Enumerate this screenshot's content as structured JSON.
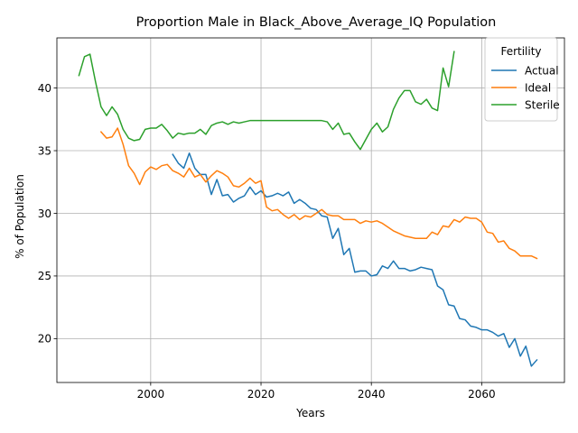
{
  "chart_data": {
    "type": "line",
    "title": "Proportion Male in Black_Above_Average_IQ Population",
    "xlabel": "Years",
    "ylabel": "% of Population",
    "xlim": [
      1983,
      2075
    ],
    "ylim": [
      16.5,
      44
    ],
    "xticks": [
      2000,
      2020,
      2040,
      2060
    ],
    "yticks": [
      20,
      25,
      30,
      35,
      40
    ],
    "grid": true,
    "legend": {
      "title": "Fertility",
      "placement": "top-right"
    },
    "series": [
      {
        "name": "Actual",
        "color": "#1f77b4",
        "x": [
          2004,
          2005,
          2006,
          2007,
          2008,
          2009,
          2010,
          2011,
          2012,
          2013,
          2014,
          2015,
          2016,
          2017,
          2018,
          2019,
          2020,
          2021,
          2022,
          2023,
          2024,
          2025,
          2026,
          2027,
          2028,
          2029,
          2030,
          2031,
          2032,
          2033,
          2034,
          2035,
          2036,
          2037,
          2038,
          2039,
          2040,
          2041,
          2042,
          2043,
          2044,
          2045,
          2046,
          2047,
          2048,
          2049,
          2050,
          2051,
          2052,
          2053,
          2054,
          2055,
          2056,
          2057,
          2058,
          2059,
          2060,
          2061,
          2062,
          2063,
          2064,
          2065,
          2066,
          2067,
          2068,
          2069,
          2070
        ],
        "values": [
          34.7,
          34.0,
          33.6,
          34.8,
          33.6,
          33.1,
          33.1,
          31.5,
          32.7,
          31.4,
          31.5,
          30.9,
          31.2,
          31.4,
          32.1,
          31.5,
          31.8,
          31.3,
          31.4,
          31.6,
          31.4,
          31.7,
          30.8,
          31.1,
          30.8,
          30.4,
          30.3,
          29.8,
          29.7,
          28.0,
          28.8,
          26.7,
          27.2,
          25.3,
          25.4,
          25.4,
          25.0,
          25.1,
          25.8,
          25.6,
          26.2,
          25.6,
          25.6,
          25.4,
          25.5,
          25.7,
          25.6,
          25.5,
          24.2,
          23.9,
          22.7,
          22.6,
          21.6,
          21.5,
          21.0,
          20.9,
          20.7,
          20.7,
          20.5,
          20.2,
          20.4,
          19.3,
          20.0,
          18.6,
          19.4,
          17.8,
          18.3
        ]
      },
      {
        "name": "Ideal",
        "color": "#ff7f0e",
        "x": [
          1991,
          1992,
          1993,
          1994,
          1995,
          1996,
          1997,
          1998,
          1999,
          2000,
          2001,
          2002,
          2003,
          2004,
          2005,
          2006,
          2007,
          2008,
          2009,
          2010,
          2011,
          2012,
          2013,
          2014,
          2015,
          2016,
          2017,
          2018,
          2019,
          2020,
          2021,
          2022,
          2023,
          2024,
          2025,
          2026,
          2027,
          2028,
          2029,
          2030,
          2031,
          2032,
          2033,
          2034,
          2035,
          2036,
          2037,
          2038,
          2039,
          2040,
          2041,
          2042,
          2043,
          2044,
          2045,
          2046,
          2047,
          2048,
          2049,
          2050,
          2051,
          2052,
          2053,
          2054,
          2055,
          2056,
          2057,
          2058,
          2059,
          2060,
          2061,
          2062,
          2063,
          2064,
          2065,
          2066,
          2067,
          2068,
          2069,
          2070
        ],
        "values": [
          36.5,
          36.0,
          36.1,
          36.8,
          35.5,
          33.8,
          33.2,
          32.3,
          33.3,
          33.7,
          33.5,
          33.8,
          33.9,
          33.4,
          33.2,
          32.9,
          33.6,
          32.9,
          33.1,
          32.5,
          33.0,
          33.4,
          33.2,
          32.9,
          32.2,
          32.1,
          32.4,
          32.8,
          32.4,
          32.6,
          30.5,
          30.2,
          30.3,
          29.9,
          29.6,
          29.9,
          29.5,
          29.8,
          29.7,
          30.0,
          30.3,
          29.9,
          29.8,
          29.8,
          29.5,
          29.5,
          29.5,
          29.2,
          29.4,
          29.3,
          29.4,
          29.2,
          28.9,
          28.6,
          28.4,
          28.2,
          28.1,
          28.0,
          28.0,
          28.0,
          28.5,
          28.3,
          29.0,
          28.9,
          29.5,
          29.3,
          29.7,
          29.6,
          29.6,
          29.3,
          28.5,
          28.4,
          27.7,
          27.8,
          27.2,
          27.0,
          26.6,
          26.6,
          26.6,
          26.4
        ]
      },
      {
        "name": "Sterile",
        "color": "#2ca02c",
        "x": [
          1987,
          1988,
          1989,
          1990,
          1991,
          1992,
          1993,
          1994,
          1995,
          1996,
          1997,
          1998,
          1999,
          2000,
          2001,
          2002,
          2003,
          2004,
          2005,
          2006,
          2007,
          2008,
          2009,
          2010,
          2011,
          2012,
          2013,
          2014,
          2015,
          2016,
          2017,
          2018,
          2019,
          2020,
          2021,
          2022,
          2023,
          2024,
          2025,
          2026,
          2027,
          2028,
          2029,
          2030,
          2031,
          2032,
          2033,
          2034,
          2035,
          2036,
          2037,
          2038,
          2039,
          2040,
          2041,
          2042,
          2043,
          2044,
          2045,
          2046,
          2047,
          2048,
          2049,
          2050,
          2051,
          2052,
          2053,
          2054,
          2055
        ],
        "values": [
          41.0,
          42.5,
          42.7,
          40.5,
          38.5,
          37.8,
          38.5,
          37.9,
          36.7,
          36.0,
          35.8,
          35.9,
          36.7,
          36.8,
          36.8,
          37.1,
          36.6,
          36.0,
          36.4,
          36.3,
          36.4,
          36.4,
          36.7,
          36.3,
          37.0,
          37.2,
          37.3,
          37.1,
          37.3,
          37.2,
          37.3,
          37.4,
          37.4,
          37.4,
          37.4,
          37.4,
          37.4,
          37.4,
          37.4,
          37.4,
          37.4,
          37.4,
          37.4,
          37.4,
          37.4,
          37.3,
          36.7,
          37.2,
          36.3,
          36.4,
          35.7,
          35.1,
          35.9,
          36.7,
          37.2,
          36.5,
          36.9,
          38.3,
          39.2,
          39.8,
          39.8,
          38.9,
          38.7,
          39.1,
          38.4,
          38.2,
          41.6,
          40.1,
          42.9
        ]
      }
    ]
  }
}
